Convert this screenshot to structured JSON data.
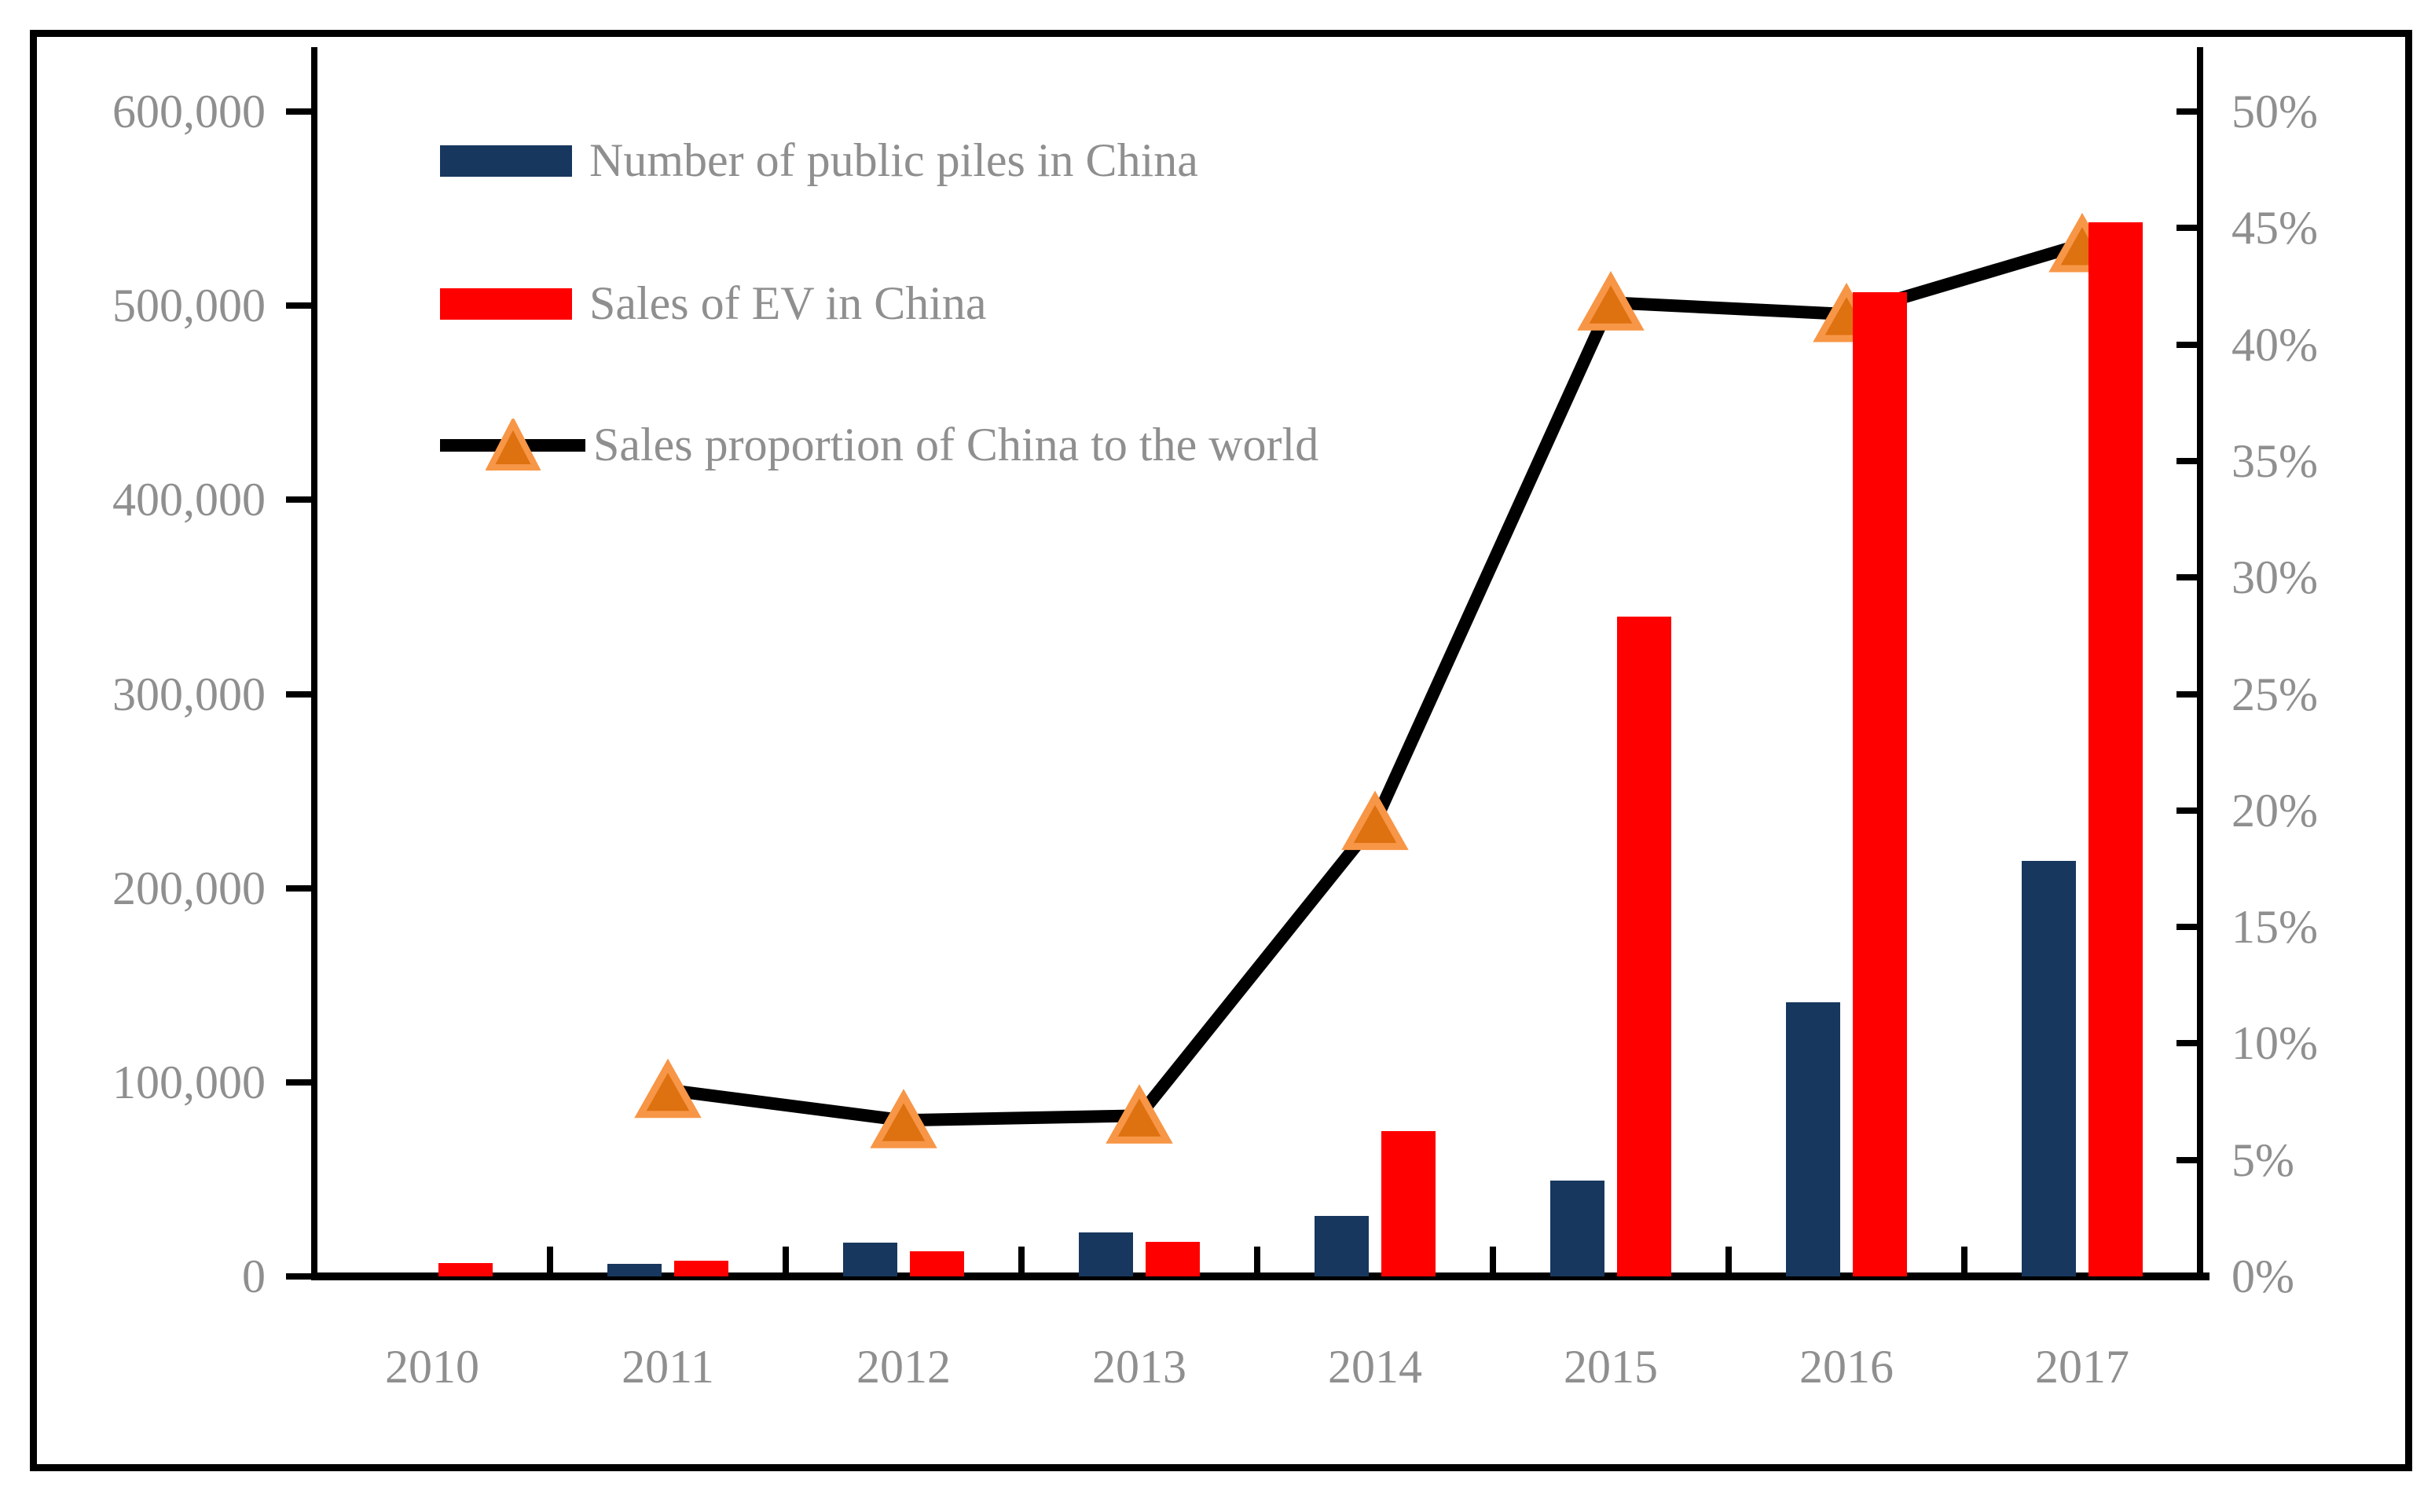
{
  "chart_data": {
    "type": "bar",
    "subtype": "bar-line-combo",
    "title": "",
    "categories": [
      "2010",
      "2011",
      "2012",
      "2013",
      "2014",
      "2015",
      "2016",
      "2017"
    ],
    "series": [
      {
        "name": "Number of public piles in China",
        "type": "bar",
        "axis": "left",
        "color": "#17375E",
        "values": [
          0,
          6500,
          17500,
          22500,
          31000,
          49500,
          141000,
          213900
        ]
      },
      {
        "name": "Sales of EV in China",
        "type": "bar",
        "axis": "left",
        "color": "#FF0000",
        "values": [
          7000,
          8200,
          12800,
          17600,
          75000,
          340000,
          507000,
          543000
        ]
      },
      {
        "name": "Sales proportion of China to the world",
        "type": "line",
        "axis": "right",
        "color": "#000000",
        "marker": "triangle",
        "marker_fill": "#DE7110",
        "marker_stroke": "#F79646",
        "values": [
          null,
          8.0,
          6.7,
          6.9,
          19.5,
          41.8,
          41.3,
          44.3
        ]
      }
    ],
    "left_axis": {
      "min": 0,
      "max": 600000,
      "step": 100000,
      "tick_labels": [
        "600,000",
        "500,000",
        "400,000",
        "300,000",
        "200,000",
        "100,000",
        "0"
      ]
    },
    "right_axis": {
      "min": 0,
      "max": 50,
      "step": 5,
      "tick_labels": [
        "50%",
        "45%",
        "40%",
        "35%",
        "30%",
        "25%",
        "20%",
        "15%",
        "10%",
        "5%",
        "0%"
      ]
    },
    "grid": false,
    "legend_position": "top-left-inside",
    "text_color": "#8f8f8f"
  }
}
